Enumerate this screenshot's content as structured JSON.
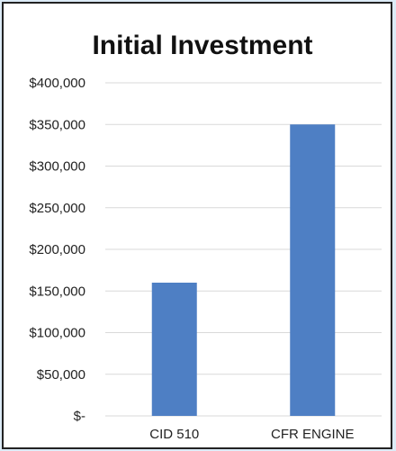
{
  "chart_data": {
    "type": "bar",
    "title": "Initial Investment",
    "xlabel": "",
    "ylabel": "",
    "categories": [
      "CID 510",
      "CFR ENGINE"
    ],
    "values": [
      160000,
      350000
    ],
    "ylim": [
      0,
      400000
    ],
    "yticks": [
      0,
      50000,
      100000,
      150000,
      200000,
      250000,
      300000,
      350000,
      400000
    ],
    "ytick_labels": [
      "$-",
      "$50,000",
      "$100,000",
      "$150,000",
      "$200,000",
      "$250,000",
      "$300,000",
      "$350,000",
      "$400,000"
    ],
    "grid": true,
    "legend": "none",
    "bar_color": "#4e7fc4",
    "grid_color": "#d9d9d9"
  }
}
